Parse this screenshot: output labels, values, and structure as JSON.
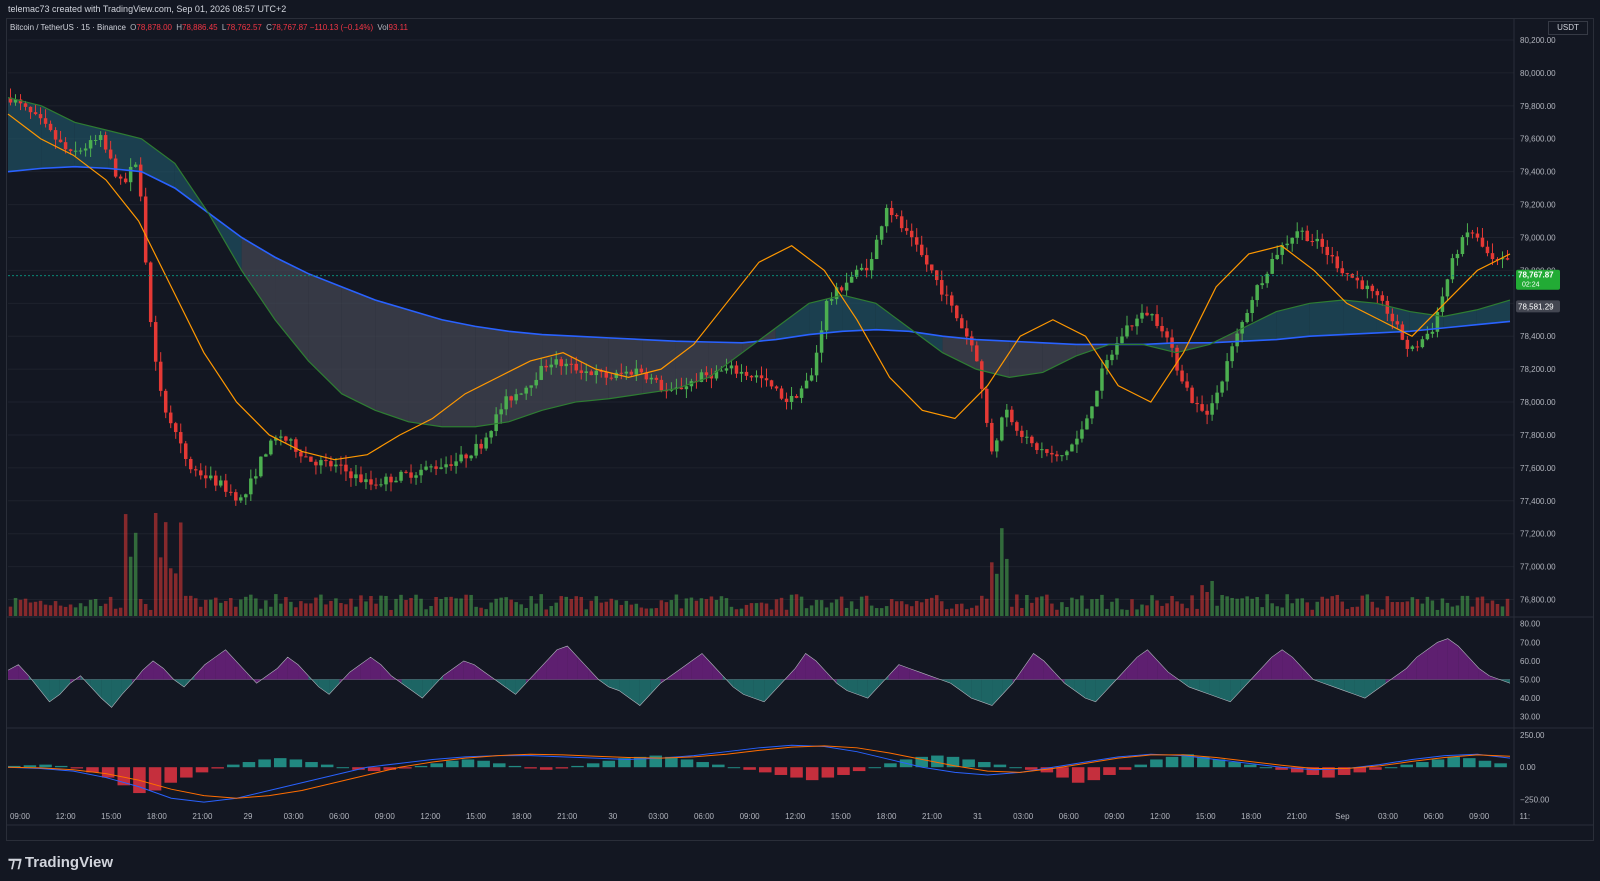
{
  "header": {
    "credit": "telemac73 created with TradingView.com, Sep 01, 2026 08:57 UTC+2"
  },
  "legend": {
    "symbol": "Bitcoin / TetherUS · 15 · Binance",
    "open_label": "O",
    "open": "78,878.00",
    "high_label": "H",
    "high": "78,886.45",
    "low_label": "L",
    "low": "78,762.57",
    "close_label": "C",
    "close": "78,767.87",
    "change": "−110.13 (−0.14%)",
    "vol_label": "Vol",
    "vol": "93.11"
  },
  "currency_badge": "USDT",
  "colors": {
    "background": "#131722",
    "grid": "#1e222d",
    "up": "#4caf50",
    "down": "#e53935",
    "ema_fast": "#ff9800",
    "ema_slow": "#2e7d32",
    "ema_long": "#2962ff",
    "cloud_bull": "#1f4e5f",
    "cloud_bear": "#434651",
    "rsi_upper": "#9c27b0",
    "rsi_lower": "#26a69a",
    "price_tag": "#089981"
  },
  "brand": "TradingView",
  "chart_data": [
    {
      "type": "candlestick",
      "title": "",
      "pane": "price",
      "y_ticks": [
        "80,200.00",
        "80,000.00",
        "79,800.00",
        "79,600.00",
        "79,400.00",
        "79,200.00",
        "79,000.00",
        "78,800.00",
        "78,600.00",
        "78,400.00",
        "78,200.00",
        "78,000.00",
        "77,800.00",
        "77,600.00",
        "77,400.00",
        "77,200.00",
        "77,000.00",
        "76,800.00"
      ],
      "ylim": [
        76700,
        80200
      ],
      "x_ticks": [
        "09:00",
        "12:00",
        "15:00",
        "18:00",
        "21:00",
        "29",
        "03:00",
        "06:00",
        "09:00",
        "12:00",
        "15:00",
        "18:00",
        "21:00",
        "30",
        "03:00",
        "06:00",
        "09:00",
        "12:00",
        "15:00",
        "18:00",
        "21:00",
        "31",
        "03:00",
        "06:00",
        "09:00",
        "12:00",
        "15:00",
        "18:00",
        "21:00",
        "Sep",
        "03:00",
        "06:00",
        "09:00",
        "11:"
      ],
      "current_price": "78,767.87",
      "countdown": "02:24",
      "secondary_price": "78,581.29",
      "price_path": [
        [
          0,
          79850
        ],
        [
          0.02,
          79700
        ],
        [
          0.04,
          79500
        ],
        [
          0.06,
          79600
        ],
        [
          0.075,
          79300
        ],
        [
          0.085,
          79500
        ],
        [
          0.095,
          78300
        ],
        [
          0.105,
          77900
        ],
        [
          0.12,
          77600
        ],
        [
          0.14,
          77500
        ],
        [
          0.155,
          77400
        ],
        [
          0.17,
          77700
        ],
        [
          0.18,
          77800
        ],
        [
          0.2,
          77650
        ],
        [
          0.22,
          77600
        ],
        [
          0.24,
          77500
        ],
        [
          0.26,
          77550
        ],
        [
          0.28,
          77600
        ],
        [
          0.3,
          77650
        ],
        [
          0.315,
          77750
        ],
        [
          0.33,
          78000
        ],
        [
          0.345,
          78100
        ],
        [
          0.36,
          78250
        ],
        [
          0.38,
          78200
        ],
        [
          0.4,
          78150
        ],
        [
          0.42,
          78200
        ],
        [
          0.44,
          78050
        ],
        [
          0.46,
          78150
        ],
        [
          0.48,
          78200
        ],
        [
          0.5,
          78150
        ],
        [
          0.52,
          78000
        ],
        [
          0.535,
          78150
        ],
        [
          0.545,
          78600
        ],
        [
          0.56,
          78750
        ],
        [
          0.575,
          78850
        ],
        [
          0.585,
          79200
        ],
        [
          0.6,
          79000
        ],
        [
          0.615,
          78800
        ],
        [
          0.63,
          78550
        ],
        [
          0.645,
          78300
        ],
        [
          0.655,
          77700
        ],
        [
          0.665,
          77950
        ],
        [
          0.68,
          77750
        ],
        [
          0.7,
          77650
        ],
        [
          0.715,
          77800
        ],
        [
          0.73,
          78200
        ],
        [
          0.745,
          78450
        ],
        [
          0.76,
          78550
        ],
        [
          0.77,
          78450
        ],
        [
          0.78,
          78200
        ],
        [
          0.79,
          78000
        ],
        [
          0.8,
          77900
        ],
        [
          0.815,
          78300
        ],
        [
          0.83,
          78650
        ],
        [
          0.845,
          78900
        ],
        [
          0.86,
          79050
        ],
        [
          0.875,
          78950
        ],
        [
          0.89,
          78800
        ],
        [
          0.905,
          78700
        ],
        [
          0.92,
          78550
        ],
        [
          0.935,
          78300
        ],
        [
          0.95,
          78450
        ],
        [
          0.965,
          78900
        ],
        [
          0.975,
          79050
        ],
        [
          0.99,
          78850
        ]
      ],
      "volume_spikes": [
        [
          0.08,
          "high"
        ],
        [
          0.1,
          "high"
        ],
        [
          0.11,
          "high"
        ],
        [
          0.66,
          "high"
        ],
        [
          0.8,
          "med"
        ]
      ],
      "series": [
        {
          "name": "",
          "type": "line",
          "values": [
            79750,
            79600,
            79500,
            79350,
            79100,
            78700,
            78300,
            78000,
            77800,
            77700,
            77650,
            77680,
            77800,
            77900,
            78050,
            78150,
            78250,
            78300,
            78200,
            78150,
            78200,
            78350,
            78600,
            78850,
            78950,
            78800,
            78500,
            78150,
            77950,
            77900,
            78100,
            78400,
            78500,
            78400,
            78100,
            78000,
            78300,
            78700,
            78900,
            78950,
            78800,
            78600,
            78500,
            78400,
            78600,
            78800,
            78900
          ]
        },
        {
          "name": "",
          "type": "line",
          "values": [
            79850,
            79800,
            79700,
            79650,
            79600,
            79450,
            79150,
            78800,
            78500,
            78250,
            78050,
            77950,
            77880,
            77850,
            77850,
            77880,
            77950,
            78000,
            78020,
            78050,
            78080,
            78150,
            78300,
            78450,
            78600,
            78650,
            78600,
            78450,
            78300,
            78200,
            78150,
            78180,
            78280,
            78350,
            78350,
            78300,
            78350,
            78450,
            78550,
            78600,
            78620,
            78600,
            78550,
            78520,
            78560,
            78620
          ]
        },
        {
          "name": "",
          "type": "line",
          "values": [
            79400,
            79420,
            79430,
            79420,
            79400,
            79300,
            79150,
            79000,
            78880,
            78780,
            78700,
            78620,
            78560,
            78500,
            78460,
            78430,
            78410,
            78400,
            78390,
            78380,
            78370,
            78365,
            78360,
            78380,
            78410,
            78430,
            78440,
            78430,
            78400,
            78380,
            78370,
            78360,
            78350,
            78350,
            78350,
            78360,
            78360,
            78370,
            78380,
            78400,
            78410,
            78420,
            78430,
            78450,
            78470,
            78490
          ]
        }
      ]
    },
    {
      "type": "area",
      "title": "",
      "pane": "rsi",
      "y_ticks": [
        "80.00",
        "70.00",
        "60.00",
        "50.00",
        "40.00",
        "30.00"
      ],
      "ylim": [
        25,
        82
      ],
      "baseline": 50,
      "values": [
        55,
        58,
        52,
        45,
        38,
        42,
        48,
        52,
        46,
        40,
        35,
        42,
        48,
        55,
        60,
        56,
        50,
        46,
        52,
        58,
        62,
        66,
        60,
        54,
        48,
        52,
        56,
        62,
        58,
        52,
        46,
        42,
        48,
        54,
        58,
        62,
        58,
        52,
        48,
        44,
        40,
        46,
        52,
        56,
        60,
        58,
        54,
        50,
        46,
        42,
        48,
        54,
        60,
        66,
        68,
        62,
        56,
        50,
        46,
        44,
        40,
        36,
        42,
        48,
        52,
        56,
        60,
        64,
        58,
        52,
        46,
        42,
        40,
        38,
        44,
        50,
        56,
        64,
        60,
        54,
        48,
        44,
        42,
        40,
        46,
        52,
        58,
        56,
        54,
        52,
        50,
        48,
        44,
        40,
        38,
        36,
        42,
        48,
        56,
        64,
        60,
        54,
        48,
        44,
        40,
        38,
        44,
        50,
        56,
        62,
        66,
        60,
        54,
        50,
        46,
        44,
        42,
        40,
        38,
        44,
        50,
        56,
        62,
        66,
        62,
        56,
        50,
        48,
        46,
        44,
        42,
        40,
        44,
        48,
        52,
        56,
        62,
        66,
        70,
        72,
        68,
        62,
        56,
        52,
        50,
        48
      ]
    },
    {
      "type": "bar",
      "title": "",
      "pane": "macd",
      "y_ticks": [
        "250.00",
        "0.00",
        "−250.00"
      ],
      "ylim": [
        -300,
        280
      ],
      "values": [
        10,
        15,
        20,
        10,
        -10,
        -40,
        -80,
        -140,
        -200,
        -180,
        -120,
        -80,
        -40,
        -10,
        20,
        40,
        60,
        70,
        60,
        40,
        20,
        0,
        -20,
        -30,
        -20,
        -10,
        10,
        30,
        50,
        60,
        50,
        30,
        10,
        -10,
        -20,
        -10,
        10,
        30,
        50,
        70,
        80,
        90,
        80,
        60,
        40,
        20,
        0,
        -20,
        -40,
        -60,
        -80,
        -100,
        -80,
        -60,
        -30,
        0,
        30,
        60,
        80,
        90,
        80,
        60,
        40,
        20,
        0,
        -20,
        -40,
        -80,
        -120,
        -100,
        -60,
        -20,
        20,
        60,
        80,
        100,
        80,
        60,
        40,
        20,
        0,
        -20,
        -40,
        -60,
        -80,
        -60,
        -40,
        -20,
        0,
        20,
        40,
        60,
        80,
        70,
        50,
        30
      ],
      "series": [
        {
          "name": "",
          "values": [
            0,
            -10,
            -30,
            -80,
            -150,
            -240,
            -270,
            -240,
            -180,
            -120,
            -60,
            0,
            30,
            60,
            80,
            90,
            90,
            80,
            70,
            60,
            70,
            90,
            120,
            150,
            170,
            160,
            120,
            60,
            0,
            -40,
            -60,
            -40,
            0,
            40,
            80,
            100,
            90,
            60,
            30,
            0,
            -20,
            -10,
            20,
            60,
            90,
            100,
            70
          ]
        },
        {
          "name": "",
          "values": [
            0,
            -5,
            -20,
            -50,
            -100,
            -170,
            -220,
            -240,
            -220,
            -180,
            -120,
            -60,
            0,
            40,
            70,
            90,
            100,
            95,
            85,
            75,
            70,
            80,
            100,
            130,
            155,
            165,
            150,
            110,
            60,
            10,
            -30,
            -40,
            -10,
            30,
            70,
            95,
            95,
            75,
            45,
            15,
            -10,
            -10,
            10,
            45,
            75,
            95,
            85
          ]
        }
      ]
    }
  ]
}
